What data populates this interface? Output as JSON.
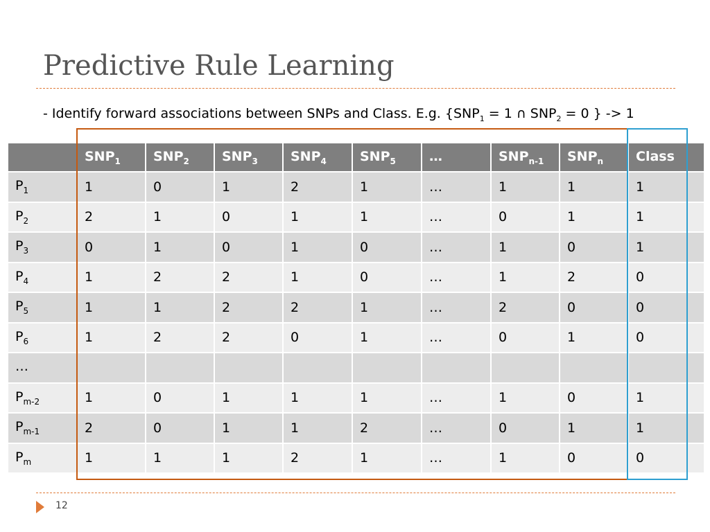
{
  "slide": {
    "title": "Predictive Rule Learning",
    "subtitle": {
      "text1": "- Identify forward associations between SNPs and Class. E.g. {SNP",
      "sub1": "1",
      "text2": " = 1 ∩ SNP",
      "sub2": "2",
      "text3": " = 0 } -> 1"
    },
    "page_number": "12"
  },
  "table": {
    "headers": [
      {
        "base": "",
        "sub": ""
      },
      {
        "base": "SNP",
        "sub": "1"
      },
      {
        "base": "SNP",
        "sub": "2"
      },
      {
        "base": "SNP",
        "sub": "3"
      },
      {
        "base": "SNP",
        "sub": "4"
      },
      {
        "base": "SNP",
        "sub": "5"
      },
      {
        "base": "…",
        "sub": ""
      },
      {
        "base": "SNP",
        "sub": "n-1"
      },
      {
        "base": "SNP",
        "sub": "n"
      },
      {
        "base": "Class",
        "sub": ""
      }
    ],
    "rows": [
      {
        "label": {
          "base": "P",
          "sub": "1"
        },
        "cells": [
          "1",
          "0",
          "1",
          "2",
          "1",
          "…",
          "1",
          "1",
          "1"
        ]
      },
      {
        "label": {
          "base": "P",
          "sub": "2"
        },
        "cells": [
          "2",
          "1",
          "0",
          "1",
          "1",
          "…",
          "0",
          "1",
          "1"
        ]
      },
      {
        "label": {
          "base": "P",
          "sub": "3"
        },
        "cells": [
          "0",
          "1",
          "0",
          "1",
          "0",
          "…",
          "1",
          "0",
          "1"
        ]
      },
      {
        "label": {
          "base": "P",
          "sub": "4"
        },
        "cells": [
          "1",
          "2",
          "2",
          "1",
          "0",
          "…",
          "1",
          "2",
          "0"
        ]
      },
      {
        "label": {
          "base": "P",
          "sub": "5"
        },
        "cells": [
          "1",
          "1",
          "2",
          "2",
          "1",
          "…",
          "2",
          "0",
          "0"
        ]
      },
      {
        "label": {
          "base": "P",
          "sub": "6"
        },
        "cells": [
          "1",
          "2",
          "2",
          "0",
          "1",
          "…",
          "0",
          "1",
          "0"
        ]
      },
      {
        "label": {
          "base": "…",
          "sub": ""
        },
        "cells": [
          "",
          "",
          "",
          "",
          "",
          "",
          "",
          "",
          ""
        ]
      },
      {
        "label": {
          "base": "P",
          "sub": "m-2"
        },
        "cells": [
          "1",
          "0",
          "1",
          "1",
          "1",
          "…",
          "1",
          "0",
          "1"
        ]
      },
      {
        "label": {
          "base": "P",
          "sub": "m-1"
        },
        "cells": [
          "2",
          "0",
          "1",
          "1",
          "2",
          "…",
          "0",
          "1",
          "1"
        ]
      },
      {
        "label": {
          "base": "P",
          "sub": "m"
        },
        "cells": [
          "1",
          "1",
          "1",
          "2",
          "1",
          "…",
          "1",
          "0",
          "0"
        ]
      }
    ]
  },
  "colors": {
    "title": "#555555",
    "accent_orange": "#e07b39",
    "feature_box": "#c55a11",
    "class_box": "#2e9fd0",
    "header_bg": "#7f7f7f",
    "row_dark": "#d9d9d9",
    "row_light": "#ededed"
  },
  "icons": {
    "footer": "triangle-right-icon"
  }
}
